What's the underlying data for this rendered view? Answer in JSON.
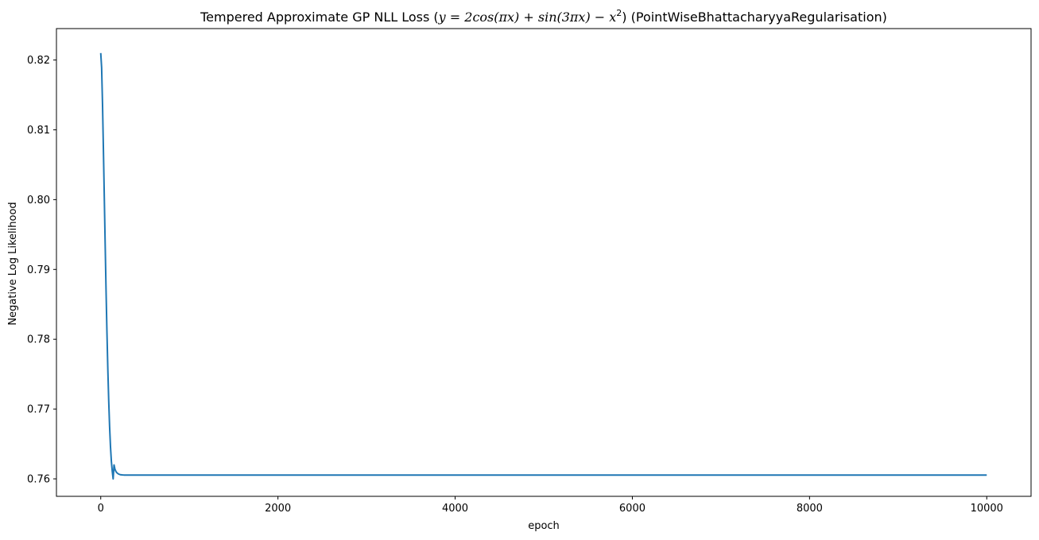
{
  "chart_data": {
    "type": "line",
    "title": {
      "prefix": "Tempered Approximate GP NLL Loss (",
      "math": "y = 2cos(πx) + sin(3πx) − x",
      "superscript": "2",
      "suffix": ") (PointWiseBhattacharyyaRegularisation)"
    },
    "xlabel": "epoch",
    "ylabel": "Negative Log Likelihood",
    "xlim": [
      -500,
      10500
    ],
    "ylim": [
      0.7575,
      0.8245
    ],
    "xticks": [
      0,
      2000,
      4000,
      6000,
      8000,
      10000
    ],
    "xtick_labels": [
      "0",
      "2000",
      "4000",
      "6000",
      "8000",
      "10000"
    ],
    "yticks": [
      0.76,
      0.77,
      0.78,
      0.79,
      0.8,
      0.81,
      0.82
    ],
    "ytick_labels": [
      "0.76",
      "0.77",
      "0.78",
      "0.79",
      "0.80",
      "0.81",
      "0.82"
    ],
    "grid": false,
    "series": [
      {
        "color": "#1f77b4",
        "x": [
          0,
          10,
          20,
          30,
          40,
          50,
          60,
          70,
          80,
          90,
          100,
          110,
          120,
          130,
          140,
          150,
          160,
          170,
          180,
          190,
          200,
          220,
          240,
          260,
          280,
          300,
          350,
          400,
          500,
          1000,
          2000,
          4000,
          6000,
          8000,
          10000
        ],
        "y": [
          0.821,
          0.8189,
          0.8137,
          0.8072,
          0.8004,
          0.7936,
          0.787,
          0.781,
          0.7757,
          0.7712,
          0.7675,
          0.7646,
          0.7625,
          0.7611,
          0.76,
          0.762,
          0.7614,
          0.7611,
          0.7609,
          0.7608,
          0.7607,
          0.7606,
          0.76057,
          0.76055,
          0.76054,
          0.76054,
          0.76054,
          0.76054,
          0.76054,
          0.76054,
          0.76054,
          0.76054,
          0.76054,
          0.76054,
          0.76054
        ]
      }
    ]
  }
}
